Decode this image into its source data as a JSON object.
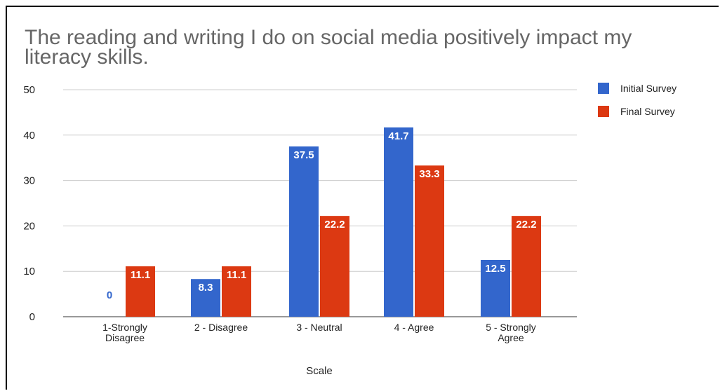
{
  "chart_data": {
    "type": "bar",
    "title": "The reading and writing I do on social media positively impact my literacy skills.",
    "xlabel": "Scale",
    "ylabel": "",
    "ylim": [
      0,
      50
    ],
    "yticks": [
      0,
      10,
      20,
      30,
      40,
      50
    ],
    "grid": true,
    "legend_position": "right",
    "categories": [
      [
        "1-Strongly",
        "Disagree"
      ],
      [
        "2 - Disagree"
      ],
      [
        "3 - Neutral"
      ],
      [
        "4 - Agree"
      ],
      [
        "5 - Strongly",
        "Agree"
      ]
    ],
    "series": [
      {
        "name": "Initial Survey",
        "color": "#3366cc",
        "values": [
          0,
          8.3,
          37.5,
          41.7,
          12.5
        ],
        "labels": [
          "0",
          "8.3",
          "37.5",
          "41.7",
          "12.5"
        ]
      },
      {
        "name": "Final Survey",
        "color": "#dc3912",
        "values": [
          11.1,
          11.1,
          22.2,
          33.3,
          22.2
        ],
        "labels": [
          "11.1",
          "11.1",
          "22.2",
          "33.3",
          "22.2"
        ]
      }
    ]
  }
}
